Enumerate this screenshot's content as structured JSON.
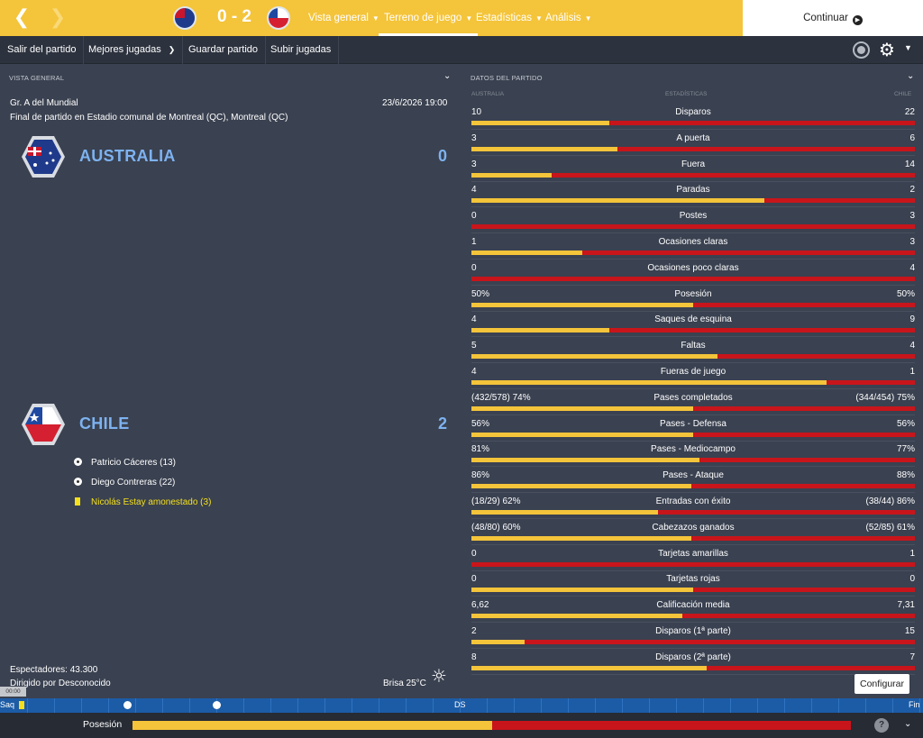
{
  "topbar": {
    "score": "0 - 2",
    "nav": [
      {
        "label": "Vista general"
      },
      {
        "label": "Terreno de juego"
      },
      {
        "label": "Estadísticas"
      },
      {
        "label": "Análisis"
      }
    ],
    "continue_label": "Continuar",
    "accent": "#f4c43a"
  },
  "toolbar": {
    "items": [
      {
        "label": "Salir del partido"
      },
      {
        "label": "Mejores jugadas"
      },
      {
        "label": "Guardar partido"
      },
      {
        "label": "Subir jugadas"
      }
    ]
  },
  "overview": {
    "section_title": "VISTA GENERAL",
    "competition": "Gr. A del Mundial",
    "datetime": "23/6/2026 19:00",
    "result_line": "Final de partido en Estadio comunal de Montreal (QC), Montreal (QC)",
    "home": {
      "name": "AUSTRALIA",
      "score": "0"
    },
    "away": {
      "name": "CHILE",
      "score": "2"
    },
    "events": [
      {
        "type": "goal-icon",
        "text": "Patricio Cáceres (13)"
      },
      {
        "type": "goal-icon",
        "text": "Diego Contreras (22)"
      },
      {
        "type": "yellow-card-icon",
        "text": "Nicolás Estay amonestado (3)"
      }
    ],
    "attendance": "Espectadores: 43.300",
    "referee": "Dirigido por Desconocido",
    "weather": "Brisa 25°C"
  },
  "stats": {
    "section_title": "DATOS DEL PARTIDO",
    "col_home": "AUSTRALIA",
    "col_mid": "ESTADÍSTICAS",
    "col_away": "CHILE",
    "home_color": "#f4c43a",
    "away_color": "#c8151b",
    "rows": [
      {
        "label": "Disparos",
        "home": "10",
        "away": "22",
        "home_share": 0.31
      },
      {
        "label": "A puerta",
        "home": "3",
        "away": "6",
        "home_share": 0.33
      },
      {
        "label": "Fuera",
        "home": "3",
        "away": "14",
        "home_share": 0.18
      },
      {
        "label": "Paradas",
        "home": "4",
        "away": "2",
        "home_share": 0.66
      },
      {
        "label": "Postes",
        "home": "0",
        "away": "3",
        "home_share": 0.0
      },
      {
        "label": "Ocasiones claras",
        "home": "1",
        "away": "3",
        "home_share": 0.25
      },
      {
        "label": "Ocasiones poco claras",
        "home": "0",
        "away": "4",
        "home_share": 0.0
      },
      {
        "label": "Posesión",
        "home": "50%",
        "away": "50%",
        "home_share": 0.5
      },
      {
        "label": "Saques de esquina",
        "home": "4",
        "away": "9",
        "home_share": 0.31
      },
      {
        "label": "Faltas",
        "home": "5",
        "away": "4",
        "home_share": 0.555
      },
      {
        "label": "Fueras de juego",
        "home": "4",
        "away": "1",
        "home_share": 0.8
      },
      {
        "label": "Pases completados",
        "home": "(432/578) 74%",
        "away": "(344/454) 75%",
        "home_share": 0.5
      },
      {
        "label": "Pases - Defensa",
        "home": "56%",
        "away": "56%",
        "home_share": 0.5
      },
      {
        "label": "Pases - Mediocampo",
        "home": "81%",
        "away": "77%",
        "home_share": 0.515
      },
      {
        "label": "Pases - Ataque",
        "home": "86%",
        "away": "88%",
        "home_share": 0.495
      },
      {
        "label": "Entradas con éxito",
        "home": "(18/29) 62%",
        "away": "(38/44) 86%",
        "home_share": 0.42
      },
      {
        "label": "Cabezazos ganados",
        "home": "(48/80) 60%",
        "away": "(52/85) 61%",
        "home_share": 0.495
      },
      {
        "label": "Tarjetas amarillas",
        "home": "0",
        "away": "1",
        "home_share": 0.0
      },
      {
        "label": "Tarjetas rojas",
        "home": "0",
        "away": "0",
        "home_share": 0.5
      },
      {
        "label": "Calificación media",
        "home": "6,62",
        "away": "7,31",
        "home_share": 0.475
      },
      {
        "label": "Disparos (1ª parte)",
        "home": "2",
        "away": "15",
        "home_share": 0.12
      },
      {
        "label": "Disparos (2ª parte)",
        "home": "8",
        "away": "7",
        "home_share": 0.53
      }
    ],
    "configure_label": "Configurar"
  },
  "timeline": {
    "time": "00:00",
    "start_label": "Saq",
    "half_label": "DS",
    "end_label": "Fin"
  },
  "possession": {
    "label": "Posesión",
    "home_share": 0.5,
    "help": "?"
  }
}
